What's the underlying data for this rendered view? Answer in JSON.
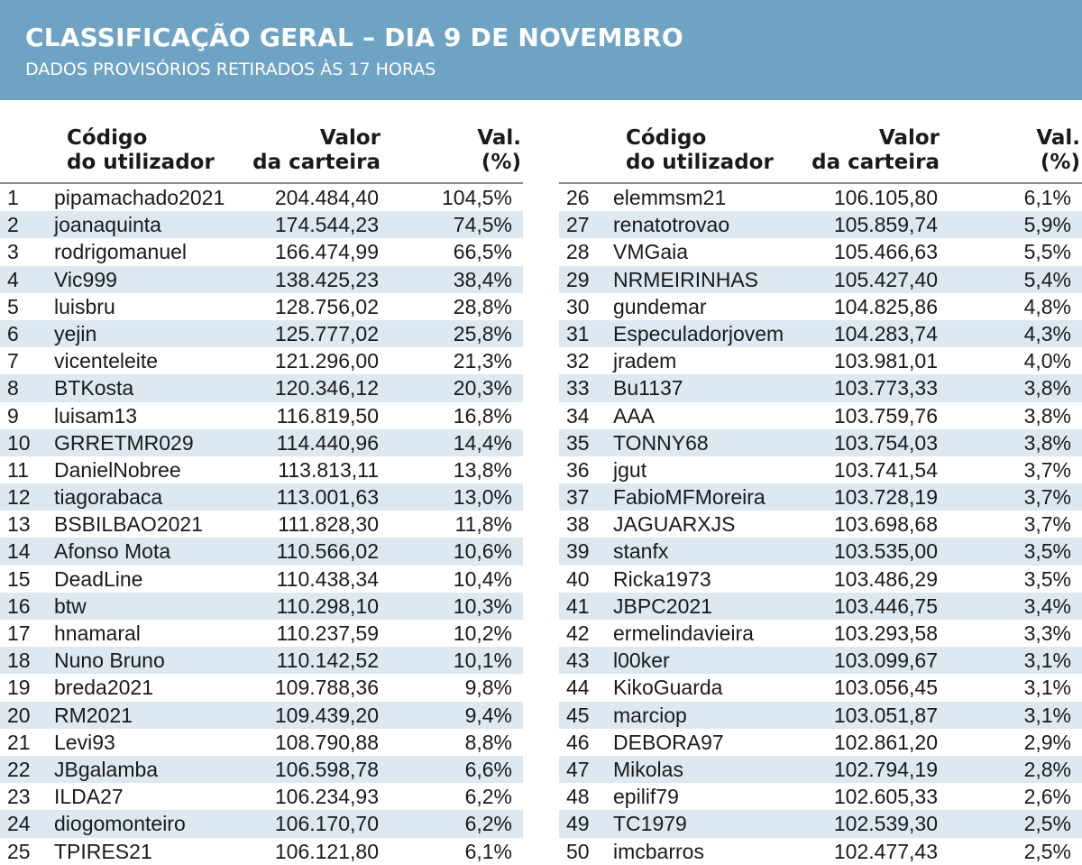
{
  "header": {
    "title": "CLASSIFICAÇÃO GERAL – DIA 9 DE NOVEMBRO",
    "subtitle": "DADOS PROVISÓRIOS RETIRADOS ÀS 17 HORAS"
  },
  "columns": {
    "code_line1": "Código",
    "code_line2": "do utilizador",
    "value_line1": "Valor",
    "value_line2": "da carteira",
    "pct_line1": "Val.",
    "pct_line2": "(%)"
  },
  "left": [
    {
      "rank": "1",
      "user": "pipamachado2021",
      "value": "204.484,40",
      "pct": "104,5%"
    },
    {
      "rank": "2",
      "user": "joanaquinta",
      "value": "174.544,23",
      "pct": "74,5%"
    },
    {
      "rank": "3",
      "user": "rodrigomanuel",
      "value": "166.474,99",
      "pct": "66,5%"
    },
    {
      "rank": "4",
      "user": "Vic999",
      "value": "138.425,23",
      "pct": "38,4%"
    },
    {
      "rank": "5",
      "user": "luisbru",
      "value": "128.756,02",
      "pct": "28,8%"
    },
    {
      "rank": "6",
      "user": "yejin",
      "value": "125.777,02",
      "pct": "25,8%"
    },
    {
      "rank": "7",
      "user": "vicenteleite",
      "value": "121.296,00",
      "pct": "21,3%"
    },
    {
      "rank": "8",
      "user": "BTKosta",
      "value": "120.346,12",
      "pct": "20,3%"
    },
    {
      "rank": "9",
      "user": "luisam13",
      "value": "116.819,50",
      "pct": "16,8%"
    },
    {
      "rank": "10",
      "user": "GRRETMR029",
      "value": "114.440,96",
      "pct": "14,4%"
    },
    {
      "rank": "11",
      "user": "DanielNobree",
      "value": "113.813,11",
      "pct": "13,8%"
    },
    {
      "rank": "12",
      "user": "tiagorabaca",
      "value": "113.001,63",
      "pct": "13,0%"
    },
    {
      "rank": "13",
      "user": "BSBILBAO2021",
      "value": "111.828,30",
      "pct": "11,8%"
    },
    {
      "rank": "14",
      "user": "Afonso Mota",
      "value": "110.566,02",
      "pct": "10,6%"
    },
    {
      "rank": "15",
      "user": "DeadLine",
      "value": "110.438,34",
      "pct": "10,4%"
    },
    {
      "rank": "16",
      "user": "btw",
      "value": "110.298,10",
      "pct": "10,3%"
    },
    {
      "rank": "17",
      "user": "hnamaral",
      "value": "110.237,59",
      "pct": "10,2%"
    },
    {
      "rank": "18",
      "user": "Nuno Bruno",
      "value": "110.142,52",
      "pct": "10,1%"
    },
    {
      "rank": "19",
      "user": "breda2021",
      "value": "109.788,36",
      "pct": "9,8%"
    },
    {
      "rank": "20",
      "user": "RM2021",
      "value": "109.439,20",
      "pct": "9,4%"
    },
    {
      "rank": "21",
      "user": "Levi93",
      "value": "108.790,88",
      "pct": "8,8%"
    },
    {
      "rank": "22",
      "user": "JBgalamba",
      "value": "106.598,78",
      "pct": "6,6%"
    },
    {
      "rank": "23",
      "user": "ILDA27",
      "value": "106.234,93",
      "pct": "6,2%"
    },
    {
      "rank": "24",
      "user": "diogomonteiro",
      "value": "106.170,70",
      "pct": "6,2%"
    },
    {
      "rank": "25",
      "user": "TPIRES21",
      "value": "106.121,80",
      "pct": "6,1%"
    }
  ],
  "right": [
    {
      "rank": "26",
      "user": "elemmsm21",
      "value": "106.105,80",
      "pct": "6,1%"
    },
    {
      "rank": "27",
      "user": "renatotrovao",
      "value": "105.859,74",
      "pct": "5,9%"
    },
    {
      "rank": "28",
      "user": "VMGaia",
      "value": "105.466,63",
      "pct": "5,5%"
    },
    {
      "rank": "29",
      "user": "NRMEIRINHAS",
      "value": "105.427,40",
      "pct": "5,4%"
    },
    {
      "rank": "30",
      "user": "gundemar",
      "value": "104.825,86",
      "pct": "4,8%"
    },
    {
      "rank": "31",
      "user": "Especuladorjovem",
      "value": "104.283,74",
      "pct": "4,3%"
    },
    {
      "rank": "32",
      "user": "jradem",
      "value": "103.981,01",
      "pct": "4,0%"
    },
    {
      "rank": "33",
      "user": "Bu1137",
      "value": "103.773,33",
      "pct": "3,8%"
    },
    {
      "rank": "34",
      "user": "AAA",
      "value": "103.759,76",
      "pct": "3,8%"
    },
    {
      "rank": "35",
      "user": "TONNY68",
      "value": "103.754,03",
      "pct": "3,8%"
    },
    {
      "rank": "36",
      "user": "jgut",
      "value": "103.741,54",
      "pct": "3,7%"
    },
    {
      "rank": "37",
      "user": "FabioMFMoreira",
      "value": "103.728,19",
      "pct": "3,7%"
    },
    {
      "rank": "38",
      "user": "JAGUARXJS",
      "value": "103.698,68",
      "pct": "3,7%"
    },
    {
      "rank": "39",
      "user": "stanfx",
      "value": "103.535,00",
      "pct": "3,5%"
    },
    {
      "rank": "40",
      "user": "Ricka1973",
      "value": "103.486,29",
      "pct": "3,5%"
    },
    {
      "rank": "41",
      "user": "JBPC2021",
      "value": "103.446,75",
      "pct": "3,4%"
    },
    {
      "rank": "42",
      "user": "ermelindavieira",
      "value": "103.293,58",
      "pct": "3,3%"
    },
    {
      "rank": "43",
      "user": "l00ker",
      "value": "103.099,67",
      "pct": "3,1%"
    },
    {
      "rank": "44",
      "user": "KikoGuarda",
      "value": "103.056,45",
      "pct": "3,1%"
    },
    {
      "rank": "45",
      "user": "marciop",
      "value": "103.051,87",
      "pct": "3,1%"
    },
    {
      "rank": "46",
      "user": "DEBORA97",
      "value": "102.861,20",
      "pct": "2,9%"
    },
    {
      "rank": "47",
      "user": "Mikolas",
      "value": "102.794,19",
      "pct": "2,8%"
    },
    {
      "rank": "48",
      "user": "epilif79",
      "value": "102.605,33",
      "pct": "2,6%"
    },
    {
      "rank": "49",
      "user": "TC1979",
      "value": "102.539,30",
      "pct": "2,5%"
    },
    {
      "rank": "50",
      "user": "imcbarros",
      "value": "102.477,43",
      "pct": "2,5%"
    }
  ]
}
